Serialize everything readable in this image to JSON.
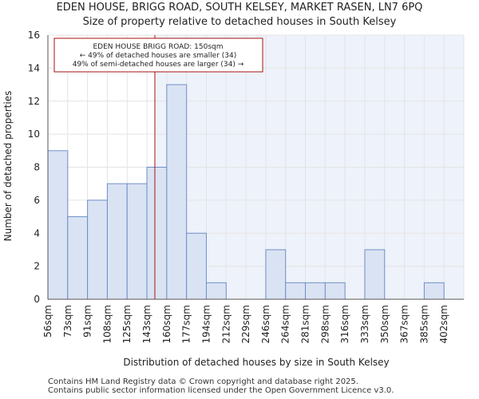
{
  "header": {
    "title_line1": "EDEN HOUSE, BRIGG ROAD, SOUTH KELSEY, MARKET RASEN, LN7 6PQ",
    "title_line2": "Size of property relative to detached houses in South Kelsey"
  },
  "footer": {
    "line1": "Contains HM Land Registry data © Crown copyright and database right 2025.",
    "line2": "Contains public sector information licensed under the Open Government Licence v3.0."
  },
  "chart_data": {
    "type": "bar",
    "xlabel": "Distribution of detached houses by size in South Kelsey",
    "ylabel": "Number of detached properties",
    "ylim": [
      0,
      16
    ],
    "yticks": [
      0,
      2,
      4,
      6,
      8,
      10,
      12,
      14,
      16
    ],
    "categories": [
      "56sqm",
      "73sqm",
      "91sqm",
      "108sqm",
      "125sqm",
      "143sqm",
      "160sqm",
      "177sqm",
      "194sqm",
      "212sqm",
      "229sqm",
      "246sqm",
      "264sqm",
      "281sqm",
      "298sqm",
      "316sqm",
      "333sqm",
      "350sqm",
      "367sqm",
      "385sqm",
      "402sqm"
    ],
    "values": [
      9,
      5,
      6,
      7,
      7,
      8,
      13,
      4,
      1,
      0,
      0,
      3,
      1,
      1,
      1,
      0,
      3,
      0,
      0,
      1,
      0
    ],
    "property_marker": {
      "value_sqm": 150,
      "bin_position": 5.4,
      "annotation": [
        "EDEN HOUSE BRIGG ROAD: 150sqm",
        "← 49% of detached houses are smaller (34)",
        "49% of semi-detached houses are larger (34) →"
      ]
    },
    "colors": {
      "bar_fill": "#dae3f3",
      "bar_stroke": "#6e8fc7",
      "highlight_background": "#eef2fa",
      "marker_line": "#aa1111",
      "grid": "#e4e4e4"
    }
  }
}
